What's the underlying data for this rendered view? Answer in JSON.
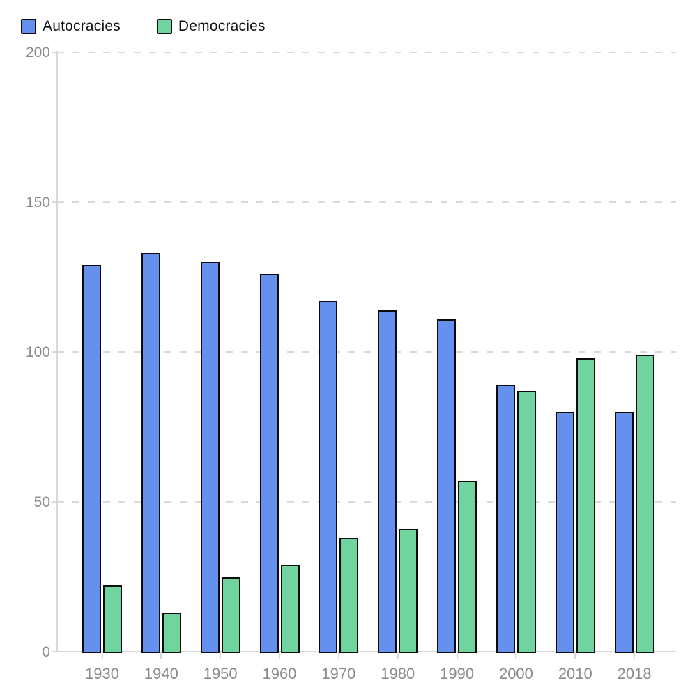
{
  "chart_data": {
    "type": "bar",
    "title": "",
    "xlabel": "",
    "ylabel": "",
    "categories": [
      "1930",
      "1940",
      "1950",
      "1960",
      "1970",
      "1980",
      "1990",
      "2000",
      "2010",
      "2018"
    ],
    "series": [
      {
        "name": "Autocracies",
        "color": "#6590ee",
        "values": [
          129,
          133,
          130,
          126,
          117,
          114,
          111,
          89,
          80,
          80
        ]
      },
      {
        "name": "Democracies",
        "color": "#70d49e",
        "values": [
          22,
          13,
          25,
          29,
          38,
          41,
          57,
          87,
          98,
          99
        ]
      }
    ],
    "ylim": [
      0,
      200
    ],
    "yticks": [
      0,
      50,
      100,
      150,
      200
    ],
    "grid": "horizontal-dashed",
    "legend_position": "top-left",
    "bar_stroke_color": "#0b0b0b",
    "axis_color": "#d8d8d8",
    "tick_label_color": "#8b8b8b"
  }
}
